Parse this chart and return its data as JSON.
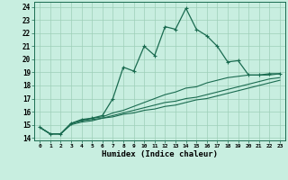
{
  "title": "",
  "xlabel": "Humidex (Indice chaleur)",
  "ylabel": "",
  "bg_color": "#c8eee0",
  "grid_color": "#9ecfb8",
  "line_color": "#1a6b50",
  "xlim": [
    -0.5,
    23.5
  ],
  "ylim": [
    13.8,
    24.4
  ],
  "xticks": [
    0,
    1,
    2,
    3,
    4,
    5,
    6,
    7,
    8,
    9,
    10,
    11,
    12,
    13,
    14,
    15,
    16,
    17,
    18,
    19,
    20,
    21,
    22,
    23
  ],
  "yticks": [
    14,
    15,
    16,
    17,
    18,
    19,
    20,
    21,
    22,
    23,
    24
  ],
  "series": [
    [
      14.8,
      14.3,
      14.3,
      15.1,
      15.4,
      15.5,
      15.7,
      17.0,
      19.4,
      19.1,
      21.0,
      20.3,
      22.5,
      22.3,
      23.9,
      22.3,
      21.8,
      21.0,
      19.8,
      19.9,
      18.8,
      18.8,
      18.9,
      18.9
    ],
    [
      14.8,
      14.3,
      14.3,
      15.1,
      15.3,
      15.5,
      15.6,
      15.9,
      16.1,
      16.4,
      16.7,
      17.0,
      17.3,
      17.5,
      17.8,
      17.9,
      18.2,
      18.4,
      18.6,
      18.7,
      18.8,
      18.8,
      18.8,
      18.9
    ],
    [
      14.8,
      14.3,
      14.3,
      15.1,
      15.3,
      15.4,
      15.5,
      15.7,
      15.9,
      16.1,
      16.3,
      16.5,
      16.7,
      16.8,
      17.0,
      17.1,
      17.3,
      17.5,
      17.7,
      17.9,
      18.1,
      18.3,
      18.5,
      18.6
    ],
    [
      14.8,
      14.3,
      14.3,
      15.0,
      15.2,
      15.3,
      15.5,
      15.6,
      15.8,
      15.9,
      16.1,
      16.2,
      16.4,
      16.5,
      16.7,
      16.9,
      17.0,
      17.2,
      17.4,
      17.6,
      17.8,
      18.0,
      18.2,
      18.4
    ]
  ]
}
